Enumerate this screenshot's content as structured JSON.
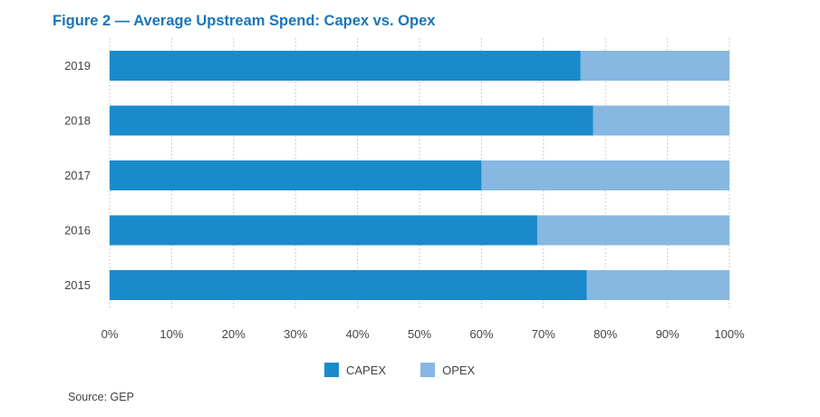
{
  "title": "Figure 2 — Average Upstream Spend: Capex vs. Opex",
  "source": "Source: GEP",
  "colors": {
    "capex": "#1b8acb",
    "opex": "#87b8e2",
    "grid": "#bbbbbb"
  },
  "legend": [
    {
      "label": "CAPEX",
      "color": "#1b8acb"
    },
    {
      "label": "OPEX",
      "color": "#87b8e2"
    }
  ],
  "chart_data": {
    "type": "bar",
    "orientation": "horizontal",
    "stacked": true,
    "categories": [
      "2019",
      "2018",
      "2017",
      "2016",
      "2015"
    ],
    "series": [
      {
        "name": "CAPEX",
        "values": [
          76,
          78,
          60,
          69,
          77
        ]
      },
      {
        "name": "OPEX",
        "values": [
          24,
          22,
          40,
          31,
          23
        ]
      }
    ],
    "xlim": [
      0,
      100
    ],
    "x_ticks": [
      "0%",
      "10%",
      "20%",
      "30%",
      "40%",
      "50%",
      "60%",
      "70%",
      "80%",
      "90%",
      "100%"
    ],
    "grid": "vertical dashed",
    "legend_position": "bottom-center"
  }
}
